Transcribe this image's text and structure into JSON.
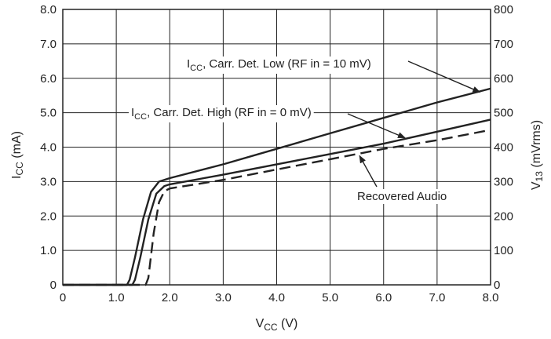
{
  "chart_data": {
    "type": "line",
    "x": {
      "label_main": "V",
      "label_sub": "CC",
      "label_unit": " (V)",
      "range": [
        0,
        8.0
      ],
      "ticks": [
        0,
        1.0,
        2.0,
        3.0,
        4.0,
        5.0,
        6.0,
        7.0,
        8.0
      ],
      "tick_labels": [
        "0",
        "1.0",
        "2.0",
        "3.0",
        "4.0",
        "5.0",
        "6.0",
        "7.0",
        "8.0"
      ]
    },
    "y_left": {
      "label_main": "I",
      "label_sub": "CC",
      "label_unit": " (mA)",
      "range": [
        0,
        8.0
      ],
      "ticks": [
        0,
        1.0,
        2.0,
        3.0,
        4.0,
        5.0,
        6.0,
        7.0,
        8.0
      ],
      "tick_labels": [
        "0",
        "1.0",
        "2.0",
        "3.0",
        "4.0",
        "5.0",
        "6.0",
        "7.0",
        "8.0"
      ]
    },
    "y_right": {
      "label_main": "V",
      "label_sub": "13",
      "label_unit": " (mVrms)",
      "range": [
        0,
        800
      ],
      "ticks": [
        0,
        100,
        200,
        300,
        400,
        500,
        600,
        700,
        800
      ],
      "tick_labels": [
        "0",
        "100",
        "200",
        "300",
        "400",
        "500",
        "600",
        "700",
        "800"
      ]
    },
    "grid": true,
    "series": [
      {
        "name": "ICC, Carr. Det. Low (RF in = 10 mV)",
        "axis": "left",
        "style": "solid",
        "color": "#222222",
        "x": [
          0,
          1.2,
          1.25,
          1.35,
          1.5,
          1.65,
          1.8,
          2.0,
          3.0,
          4.0,
          5.0,
          6.0,
          7.0,
          8.0
        ],
        "y": [
          0,
          0.0,
          0.15,
          0.8,
          1.9,
          2.7,
          3.0,
          3.1,
          3.5,
          3.95,
          4.4,
          4.85,
          5.3,
          5.7
        ]
      },
      {
        "name": "ICC, Carr. Det. High (RF in = 0 mV)",
        "axis": "left",
        "style": "solid",
        "color": "#222222",
        "x": [
          0,
          1.3,
          1.35,
          1.45,
          1.6,
          1.75,
          1.9,
          2.0,
          3.0,
          4.0,
          5.0,
          6.0,
          7.0,
          8.0
        ],
        "y": [
          0,
          0.0,
          0.15,
          0.8,
          1.9,
          2.65,
          2.87,
          2.92,
          3.2,
          3.5,
          3.8,
          4.1,
          4.45,
          4.8
        ]
      },
      {
        "name": "Recovered Audio",
        "axis": "right",
        "style": "dashed",
        "color": "#222222",
        "x": [
          0,
          1.55,
          1.6,
          1.7,
          1.8,
          1.9,
          2.0,
          3.0,
          4.0,
          5.0,
          6.0,
          7.0,
          8.0
        ],
        "y": [
          0,
          0,
          20,
          150,
          240,
          272,
          280,
          305,
          335,
          365,
          395,
          420,
          450
        ]
      }
    ],
    "annotations": [
      {
        "series": 0,
        "text_main": "I",
        "text_sub": "CC",
        "text_rest": ", Carr. Det. Low (RF in = 10 mV)",
        "point": [
          7.8,
          5.6
        ]
      },
      {
        "series": 1,
        "text_main": "I",
        "text_sub": "CC",
        "text_rest": ", Carr. Det. High (RF in = 0 mV)",
        "point": [
          6.4,
          4.27
        ]
      },
      {
        "series": 2,
        "text_main": "",
        "text_sub": "",
        "text_rest": "Recovered Audio",
        "point": [
          5.55,
          375
        ]
      }
    ]
  }
}
